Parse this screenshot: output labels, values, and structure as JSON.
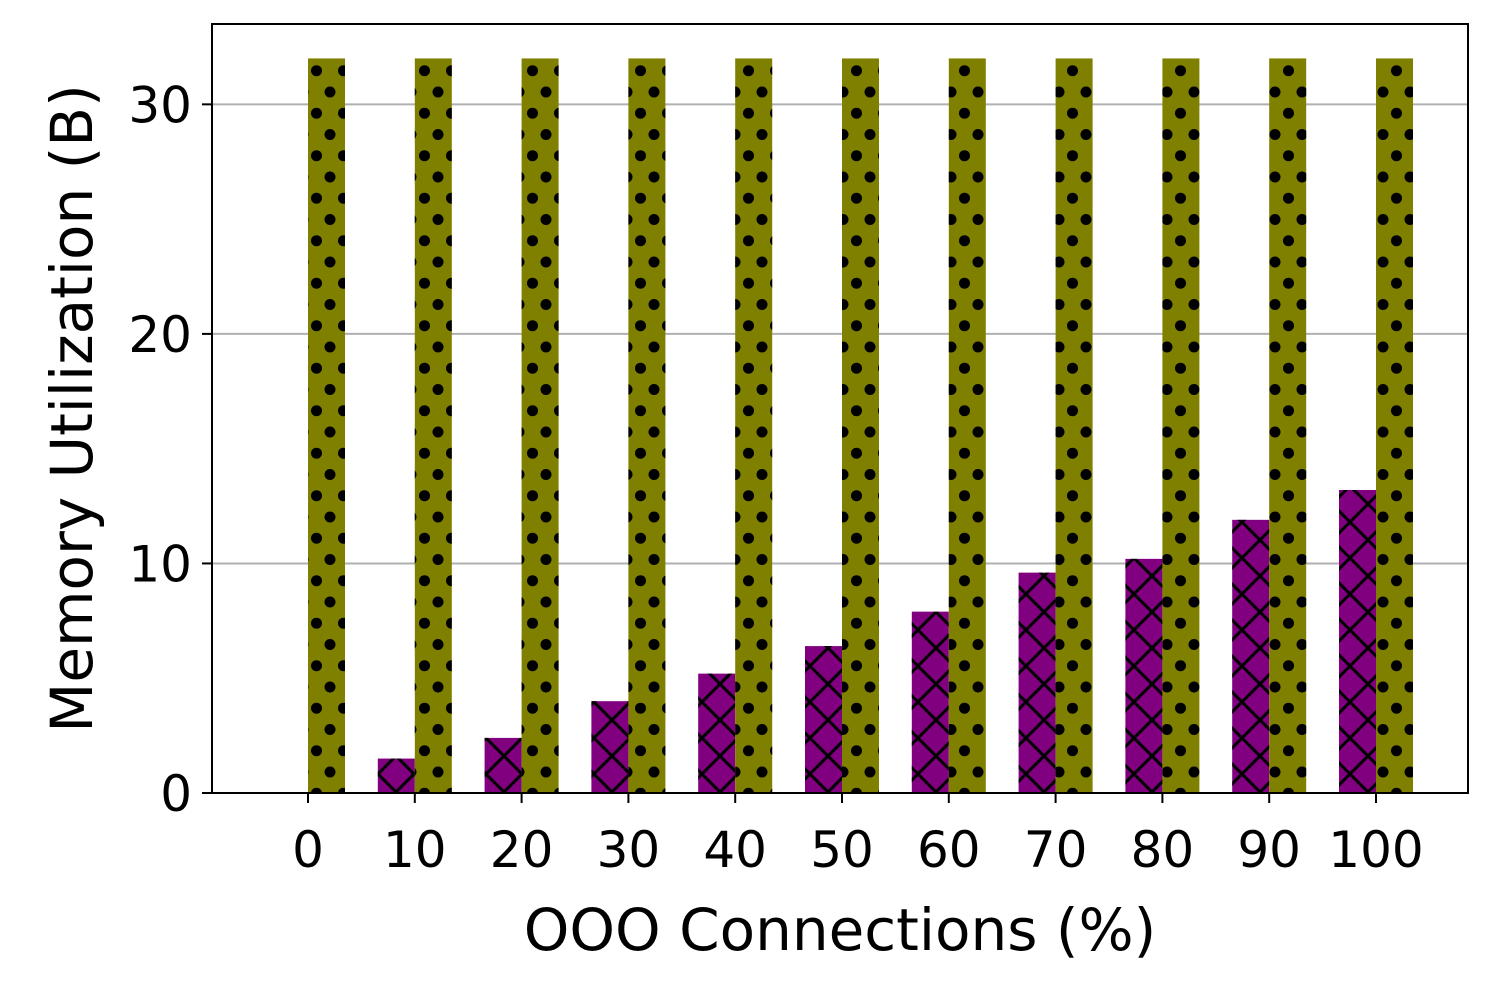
{
  "chart_data": {
    "type": "bar",
    "title": "",
    "xlabel": "OOO Connections (%)",
    "ylabel": "Memory Utilization (B)",
    "categories": [
      "0",
      "10",
      "20",
      "30",
      "40",
      "50",
      "60",
      "70",
      "80",
      "90",
      "100"
    ],
    "ylim": [
      0,
      33.5
    ],
    "yticks": [
      0,
      10,
      20,
      30
    ],
    "grid": "horizontal",
    "legend": "none",
    "series": [
      {
        "values": [
          0,
          1.5,
          2.4,
          4.0,
          5.2,
          6.4,
          7.9,
          9.6,
          10.2,
          11.9,
          13.2
        ],
        "color": "#800080",
        "hatch": "cross"
      },
      {
        "values": [
          32,
          32,
          32,
          32,
          32,
          32,
          32,
          32,
          32,
          32,
          32
        ],
        "color": "#808000",
        "hatch": "dots"
      }
    ]
  }
}
